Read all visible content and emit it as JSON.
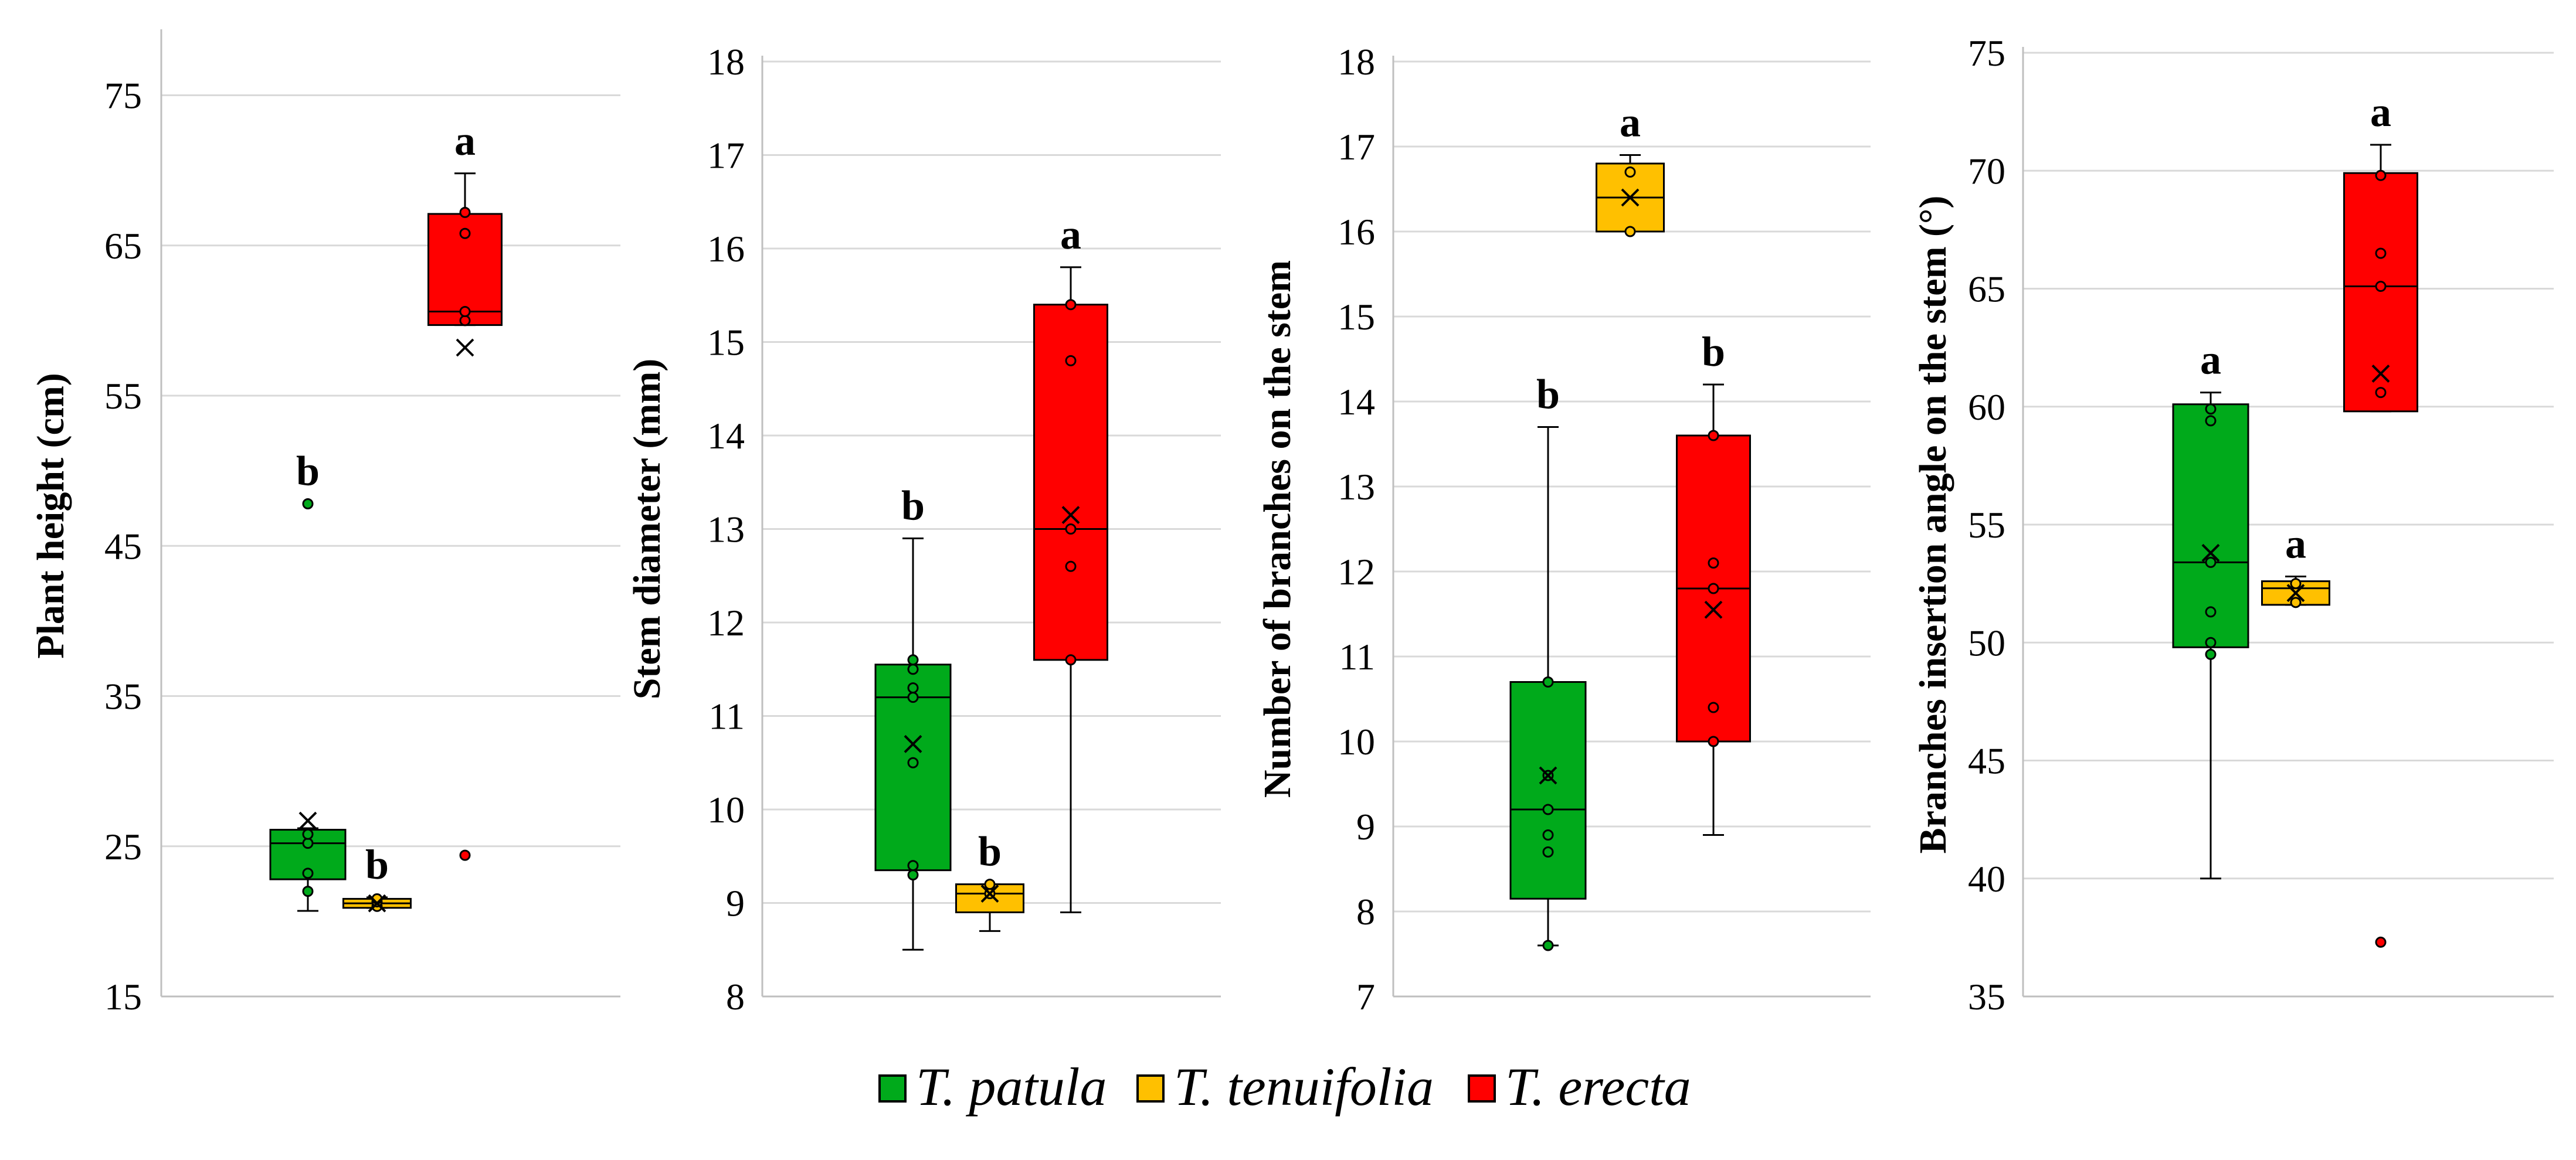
{
  "legend": [
    {
      "name": "T. patula",
      "color": "#00AA1B"
    },
    {
      "name": "T. tenuifolia",
      "color": "#FFC000"
    },
    {
      "name": "T. erecta",
      "color": "#FF0000"
    }
  ],
  "chart_data": [
    {
      "type": "box",
      "ylabel": "Plant height (cm)",
      "ylim": [
        15,
        79
      ],
      "yticks": [
        15,
        25,
        35,
        45,
        55,
        65,
        75
      ],
      "grid": true,
      "series": [
        {
          "name": "T. patula",
          "whisker_low": 20.7,
          "q1": 22.8,
          "median": 25.2,
          "q3": 26.1,
          "whisker_high": 26.2,
          "mean": 26.7,
          "points": [
            22.0,
            23.2,
            25.2,
            25.8,
            47.8
          ],
          "outliers": [
            47.8
          ],
          "letter": "b"
        },
        {
          "name": "T. tenuifolia",
          "whisker_low": 20.9,
          "q1": 20.9,
          "median": 21.2,
          "q3": 21.5,
          "whisker_high": 21.6,
          "mean": 21.2,
          "points": [
            21.0,
            21.3,
            21.5
          ],
          "outliers": [],
          "letter": "b"
        },
        {
          "name": "T. erecta",
          "whisker_low": 59.7,
          "q1": 59.7,
          "median": 60.6,
          "q3": 67.1,
          "whisker_high": 69.8,
          "mean": 58.2,
          "points": [
            60.0,
            60.6,
            65.8,
            67.2,
            24.4
          ],
          "outliers": [
            24.4
          ],
          "letter": "a"
        }
      ]
    },
    {
      "type": "box",
      "ylabel": "Stem diameter (mm)",
      "ylim": [
        8,
        18
      ],
      "yticks": [
        8,
        9,
        10,
        11,
        12,
        13,
        14,
        15,
        16,
        17,
        18
      ],
      "grid": true,
      "series": [
        {
          "name": "T. patula",
          "whisker_low": 8.5,
          "q1": 9.35,
          "median": 11.2,
          "q3": 11.55,
          "whisker_high": 12.9,
          "mean": 10.7,
          "points": [
            9.3,
            9.4,
            10.5,
            11.2,
            11.3,
            11.5,
            11.6
          ],
          "outliers": [],
          "letter": "b"
        },
        {
          "name": "T. tenuifolia",
          "whisker_low": 8.7,
          "q1": 8.9,
          "median": 9.1,
          "q3": 9.2,
          "whisker_high": 9.2,
          "mean": 9.1,
          "points": [
            9.1,
            9.2
          ],
          "outliers": [],
          "letter": "b"
        },
        {
          "name": "T. erecta",
          "whisker_low": 8.9,
          "q1": 11.6,
          "median": 13.0,
          "q3": 15.4,
          "whisker_high": 15.8,
          "mean": 13.15,
          "points": [
            11.6,
            12.6,
            13.0,
            14.8,
            15.4
          ],
          "outliers": [],
          "letter": "a"
        }
      ]
    },
    {
      "type": "box",
      "ylabel": "Number of branches on the stem",
      "ylim": [
        7,
        18
      ],
      "yticks": [
        7,
        8,
        9,
        10,
        11,
        12,
        13,
        14,
        15,
        16,
        17,
        18
      ],
      "grid": true,
      "series": [
        {
          "name": "T. patula",
          "whisker_low": 7.6,
          "q1": 8.15,
          "median": 9.2,
          "q3": 10.7,
          "whisker_high": 13.7,
          "mean": 9.6,
          "points": [
            7.6,
            8.7,
            8.9,
            9.2,
            9.6,
            10.7
          ],
          "outliers": [],
          "letter": "b"
        },
        {
          "name": "T. tenuifolia",
          "whisker_low": 16.0,
          "q1": 16.0,
          "median": 16.4,
          "q3": 16.8,
          "whisker_high": 16.9,
          "mean": 16.4,
          "points": [
            16.0,
            16.7
          ],
          "outliers": [],
          "letter": "a"
        },
        {
          "name": "T. erecta",
          "whisker_low": 8.9,
          "q1": 10.0,
          "median": 11.8,
          "q3": 13.6,
          "whisker_high": 14.2,
          "mean": 11.55,
          "points": [
            10.0,
            10.4,
            11.8,
            12.1,
            13.6
          ],
          "outliers": [],
          "letter": "b"
        }
      ]
    },
    {
      "type": "box",
      "ylabel": "Branches insertion angle on the stem (°)",
      "ylim": [
        35,
        75
      ],
      "yticks": [
        35,
        40,
        45,
        50,
        55,
        60,
        65,
        70,
        75
      ],
      "grid": true,
      "series": [
        {
          "name": "T. patula",
          "whisker_low": 40.0,
          "q1": 49.8,
          "median": 53.4,
          "q3": 60.1,
          "whisker_high": 60.6,
          "mean": 53.8,
          "points": [
            49.5,
            50.0,
            51.3,
            53.4,
            59.4,
            59.9
          ],
          "outliers": [],
          "letter": "a"
        },
        {
          "name": "T. tenuifolia",
          "whisker_low": 51.6,
          "q1": 51.6,
          "median": 52.3,
          "q3": 52.6,
          "whisker_high": 52.8,
          "mean": 52.1,
          "points": [
            51.7,
            52.5
          ],
          "outliers": [],
          "letter": "a"
        },
        {
          "name": "T. erecta",
          "whisker_low": 59.8,
          "q1": 59.8,
          "median": 65.1,
          "q3": 69.9,
          "whisker_high": 71.1,
          "mean": 61.4,
          "points": [
            60.6,
            65.1,
            66.5,
            69.8,
            37.3
          ],
          "outliers": [
            37.3
          ],
          "letter": "a"
        }
      ]
    }
  ]
}
